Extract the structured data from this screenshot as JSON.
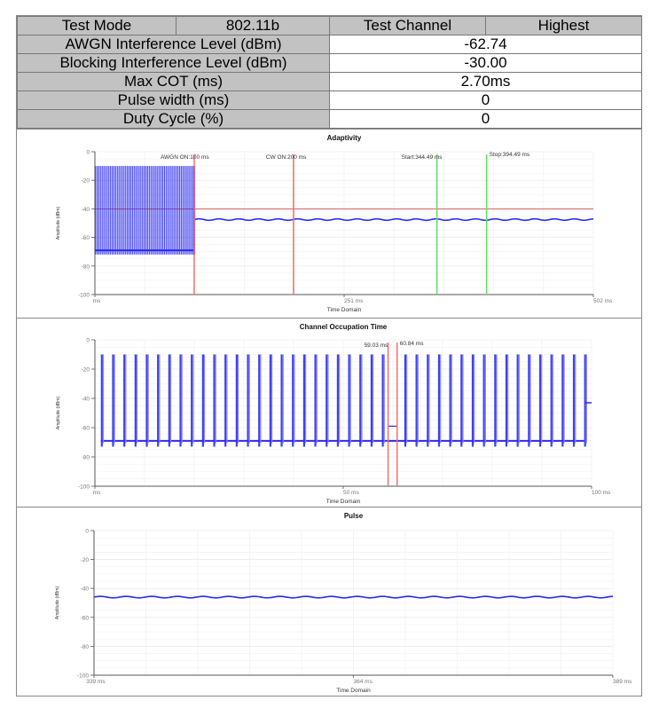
{
  "table": {
    "header": [
      "Test Mode",
      "802.11b",
      "Test Channel",
      "Highest"
    ],
    "rows": [
      {
        "label": "AWGN Interference Level (dBm)",
        "value": "-62.74"
      },
      {
        "label": "Blocking Interference Level (dBm)",
        "value": "-30.00"
      },
      {
        "label": "Max COT (ms)",
        "value": "2.70ms"
      },
      {
        "label": "Pulse width (ms)",
        "value": "0"
      },
      {
        "label": "Duty Cycle (%)",
        "value": "0"
      }
    ]
  },
  "colors": {
    "trace": "#2b2bf0",
    "marker_red": "#f07070",
    "marker_green": "#60e060",
    "threshold": "#d03030",
    "label_gray": "#c2c2c2"
  },
  "chart_data": [
    {
      "type": "line",
      "title": "Adaptivity",
      "xlabel": "Time Domain",
      "ylabel": "Amplitude (dBm)",
      "xlim": [
        0,
        502
      ],
      "ylim": [
        -100,
        0
      ],
      "yticks": [
        "0",
        "-20",
        "-40",
        "-60",
        "-80",
        "-100"
      ],
      "xticks": [
        "ms",
        "251 ms",
        "502 ms"
      ],
      "threshold": -40,
      "series": [
        {
          "name": "pulses",
          "x_start": 0,
          "x_end": 100,
          "count": 60,
          "high": -10,
          "low": -72,
          "baseline": -69
        },
        {
          "name": "flat",
          "x_start": 100,
          "x_end": 502,
          "level": -47.5
        }
      ],
      "markers": [
        {
          "label": "AWGN ON:100 ms",
          "x": 100,
          "color": "red"
        },
        {
          "label": "CW ON:200 ms",
          "x": 200,
          "color": "red"
        },
        {
          "label": "Start:344.49 ms",
          "x": 344.49,
          "color": "green"
        },
        {
          "label": "Stop:394.49 ms",
          "x": 394.49,
          "color": "green"
        }
      ]
    },
    {
      "type": "line",
      "title": "Channel Occupation Time",
      "xlabel": "Time Domain",
      "ylabel": "Amplitude (dBm)",
      "xlim": [
        0,
        100
      ],
      "ylim": [
        -100,
        0
      ],
      "yticks": [
        "0",
        "-20",
        "-40",
        "-60",
        "-80",
        "-100"
      ],
      "xticks": [
        "ms",
        "50 ms",
        "100 ms"
      ],
      "series": [
        {
          "name": "pulses",
          "x_start": 1.2,
          "x_end": 98.5,
          "count": 44,
          "high": -10,
          "low": -73,
          "baseline": -69,
          "gap": [
            59.03,
            60.84
          ],
          "gap_level": -59,
          "tail_level": -43
        }
      ],
      "markers": [
        {
          "label": "59.03 ms",
          "x": 59.03,
          "color": "red"
        },
        {
          "label": "60.84 ms",
          "x": 60.84,
          "color": "red"
        }
      ]
    },
    {
      "type": "line",
      "title": "Pulse",
      "xlabel": "Time Domain",
      "ylabel": "Amplitude (dBm)",
      "xlim": [
        339,
        389
      ],
      "ylim": [
        -100,
        0
      ],
      "yticks": [
        "0",
        "-20",
        "-40",
        "-60",
        "-80",
        "-100"
      ],
      "xticks": [
        "339 ms",
        "364 ms",
        "389 ms"
      ],
      "series": [
        {
          "name": "flat",
          "x_start": 339,
          "x_end": 389,
          "level": -46
        }
      ],
      "markers": []
    }
  ]
}
